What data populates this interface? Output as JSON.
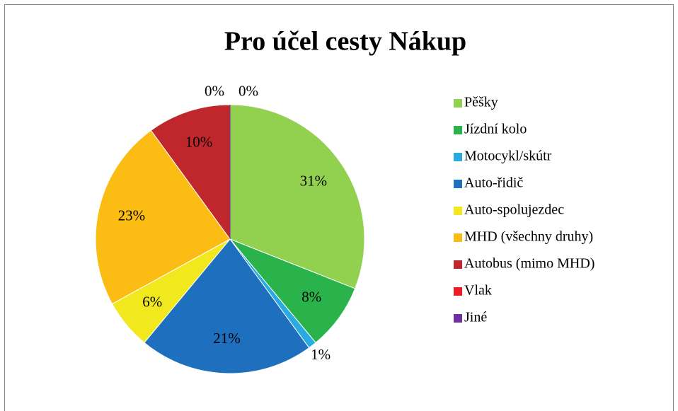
{
  "chart_data": {
    "type": "pie",
    "title": "Pro účel cesty Nákup",
    "categories": [
      "Pěšky",
      "Jízdní kolo",
      "Motocykl/skútr",
      "Auto-řidič",
      "Auto-spolujezdec",
      "MHD (všechny druhy)",
      "Autobus (mimo MHD)",
      "Vlak",
      "Jiné"
    ],
    "values": [
      31,
      8,
      1,
      21,
      6,
      23,
      10,
      0,
      0
    ],
    "value_labels": [
      "31%",
      "8%",
      "1%",
      "21%",
      "6%",
      "23%",
      "10%",
      "0%",
      "0%"
    ],
    "colors": [
      "#92d050",
      "#2bb34b",
      "#29abe2",
      "#1f6fbf",
      "#f2e81e",
      "#fbbd14",
      "#c0272d",
      "#ed1c24",
      "#7030a0"
    ],
    "legend": "right"
  }
}
